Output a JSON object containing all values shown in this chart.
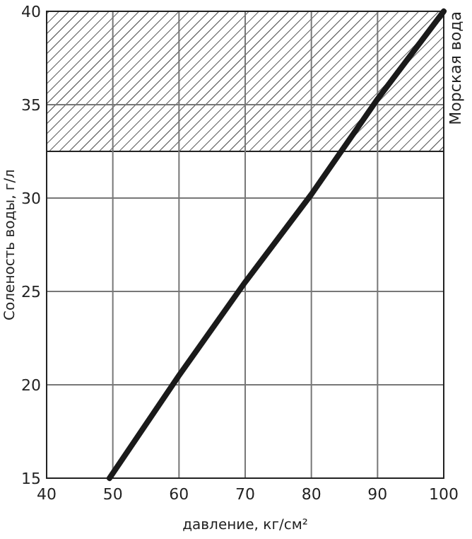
{
  "chart_data": {
    "type": "line",
    "xlabel": "давление, кг/см²",
    "ylabel": "Соленость воды, г/л",
    "x": [
      49.5,
      60,
      70,
      80,
      90,
      100
    ],
    "series": [
      {
        "color": "#1a1a1a",
        "values": [
          15,
          20.5,
          25.5,
          30.2,
          35.3,
          40
        ]
      }
    ],
    "xlim": [
      40,
      100
    ],
    "xticks": [
      40,
      50,
      60,
      70,
      80,
      90,
      100
    ],
    "ylim": [
      15,
      40
    ],
    "yticks": [
      15,
      20,
      25,
      30,
      35,
      40
    ],
    "grid": true,
    "marker": "none",
    "line_style": "solid",
    "bands": [
      {
        "axis": "y",
        "from": 32.5,
        "to": 40,
        "label": "Морская вода",
        "color": "#222222"
      }
    ]
  }
}
